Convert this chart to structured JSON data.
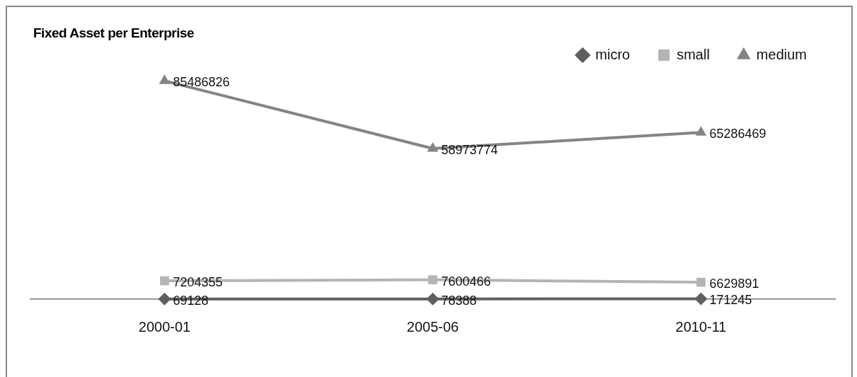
{
  "chart_data": {
    "type": "line",
    "title": "Fixed Asset per Enterprise",
    "categories": [
      "2000-01",
      "2005-06",
      "2010-11"
    ],
    "series": [
      {
        "name": "micro",
        "color": "#5f5f5f",
        "values": [
          69128,
          78388,
          171245
        ],
        "marker": "diamond"
      },
      {
        "name": "small",
        "color": "#b4b4b4",
        "values": [
          7204355,
          7600466,
          6629891
        ],
        "marker": "square"
      },
      {
        "name": "medium",
        "color": "#848484",
        "values": [
          85486826,
          58973774,
          65286469
        ],
        "marker": "triangle"
      }
    ],
    "tick_labels": "x",
    "grid": false,
    "legend": "top right",
    "data_labels": true,
    "line_style": "solid"
  }
}
